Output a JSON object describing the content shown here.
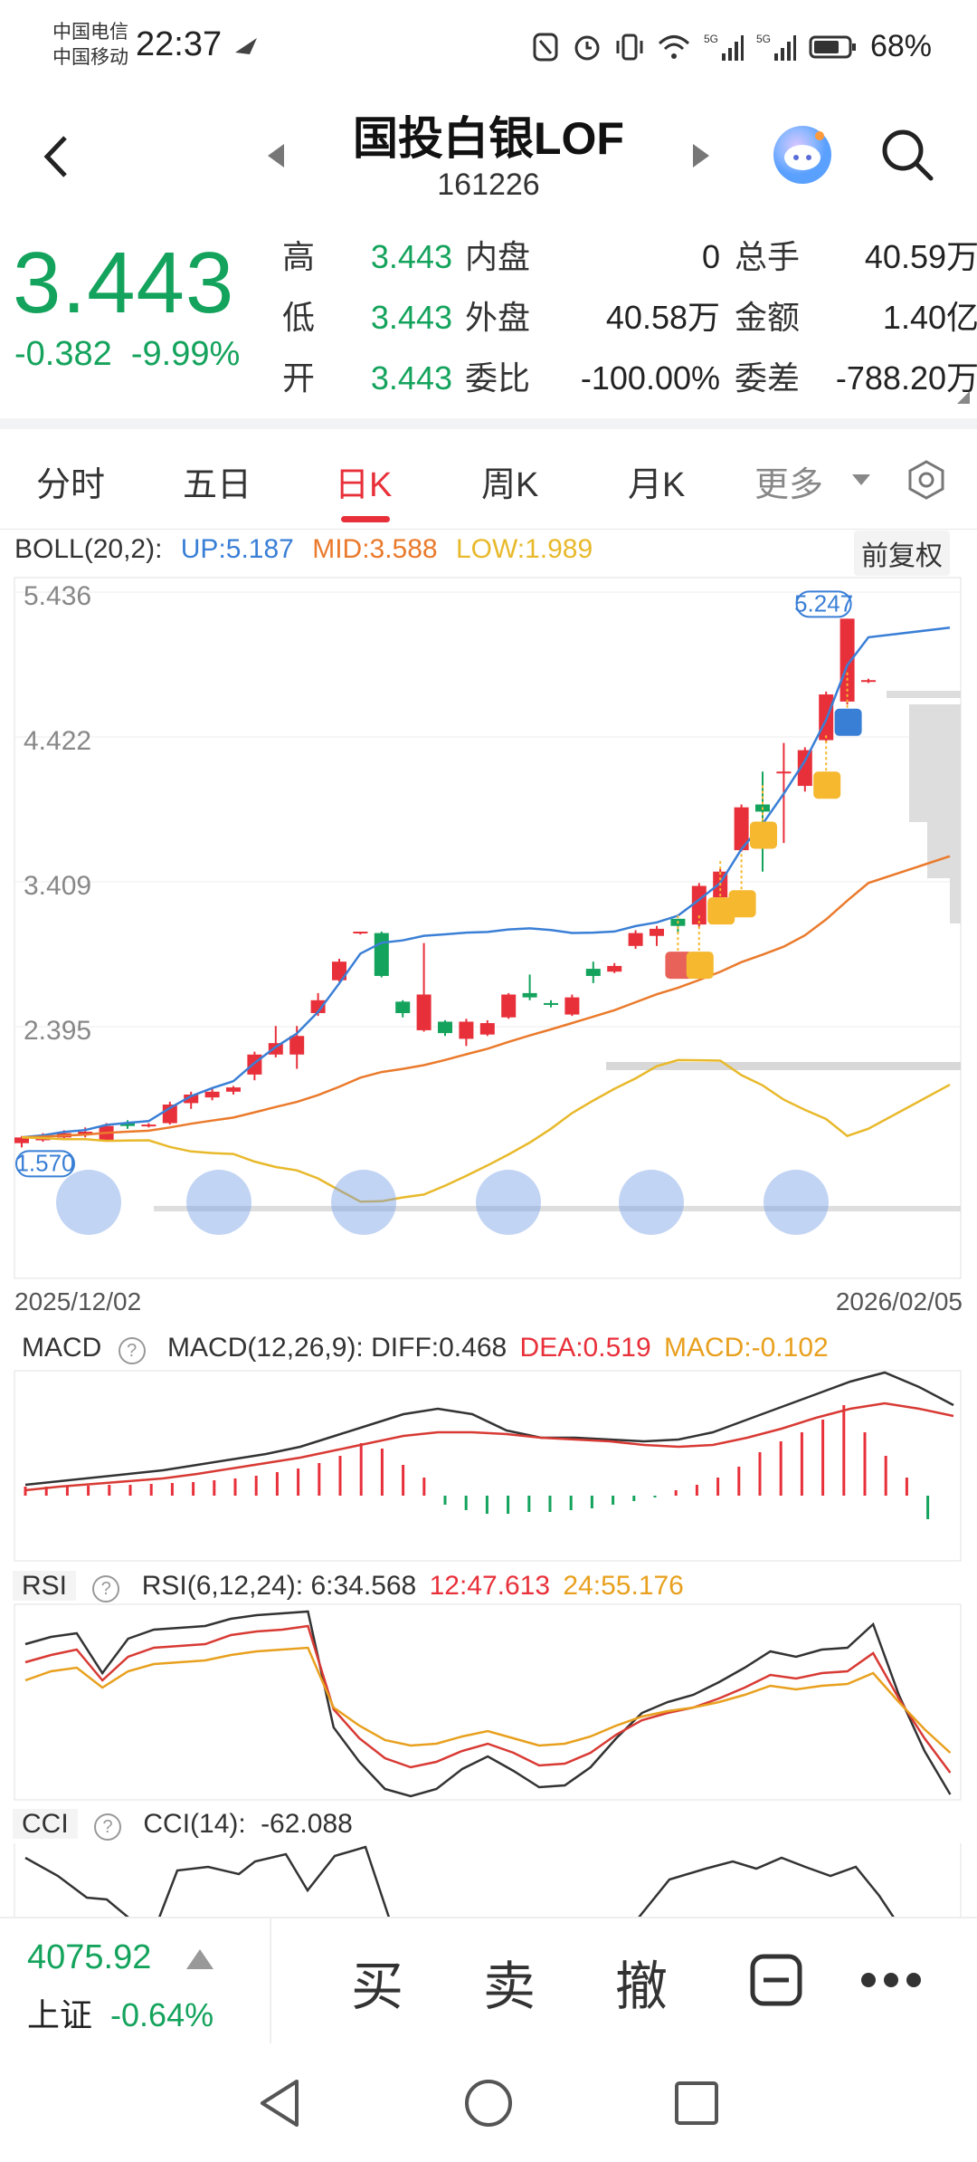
{
  "status_bar": {
    "carrier1": "中国电信",
    "carrier2": "中国移动",
    "time": "22:37",
    "battery": "68%"
  },
  "header": {
    "title": "国投白银LOF",
    "code": "161226"
  },
  "quote": {
    "price": "3.443",
    "change": "-0.382",
    "change_pct": "-9.99%",
    "rows": [
      {
        "l1": "高",
        "v1": "3.443",
        "l2": "内盘",
        "v2": "0",
        "l3": "总手",
        "v3": "40.59万"
      },
      {
        "l1": "低",
        "v1": "3.443",
        "l2": "外盘",
        "v2": "40.58万",
        "l3": "金额",
        "v3": "1.40亿"
      },
      {
        "l1": "开",
        "v1": "3.443",
        "l2": "委比",
        "v2": "-100.00%",
        "l3": "委差",
        "v3": "-788.20万"
      }
    ]
  },
  "tabs": [
    "分时",
    "五日",
    "日K",
    "周K",
    "月K",
    "更多"
  ],
  "active_tab": "日K",
  "boll": {
    "label": "BOLL(20,2):",
    "up": "UP:5.187",
    "mid": "MID:3.588",
    "low": "LOW:1.989",
    "adjust": "前复权"
  },
  "chart_data": {
    "type": "candlestick",
    "y_ticks": [
      "5.436",
      "4.422",
      "3.409",
      "2.395"
    ],
    "high_marker": "5.247",
    "low_marker": "1.570",
    "date_start": "2025/12/02",
    "date_end": "2026/02/05",
    "candles": [
      [
        1.58,
        1.62,
        1.55,
        1.63
      ],
      [
        1.6,
        1.63,
        1.59,
        1.65
      ],
      [
        1.62,
        1.65,
        1.6,
        1.67
      ],
      [
        1.64,
        1.66,
        1.62,
        1.69
      ],
      [
        1.6,
        1.7,
        1.59,
        1.72
      ],
      [
        1.72,
        1.7,
        1.68,
        1.74
      ],
      [
        1.7,
        1.71,
        1.69,
        1.72
      ],
      [
        1.72,
        1.85,
        1.71,
        1.87
      ],
      [
        1.86,
        1.92,
        1.82,
        1.94
      ],
      [
        1.9,
        1.94,
        1.88,
        1.97
      ],
      [
        1.94,
        1.97,
        1.92,
        1.98
      ],
      [
        2.06,
        2.2,
        2.02,
        2.22
      ],
      [
        2.2,
        2.28,
        2.18,
        2.4
      ],
      [
        2.2,
        2.33,
        2.1,
        2.4
      ],
      [
        2.49,
        2.58,
        2.47,
        2.63
      ],
      [
        2.72,
        2.85,
        2.71,
        2.87
      ],
      [
        3.05,
        3.06,
        3.04,
        3.06
      ],
      [
        3.05,
        2.75,
        2.74,
        3.06
      ],
      [
        2.57,
        2.49,
        2.46,
        2.58
      ],
      [
        2.37,
        2.62,
        2.36,
        2.98
      ],
      [
        2.43,
        2.35,
        2.33,
        2.44
      ],
      [
        2.31,
        2.43,
        2.26,
        2.45
      ],
      [
        2.34,
        2.42,
        2.33,
        2.44
      ],
      [
        2.46,
        2.62,
        2.45,
        2.63
      ],
      [
        2.63,
        2.6,
        2.58,
        2.76
      ],
      [
        2.56,
        2.55,
        2.53,
        2.58
      ],
      [
        2.48,
        2.6,
        2.47,
        2.62
      ],
      [
        2.8,
        2.75,
        2.7,
        2.85
      ],
      [
        2.78,
        2.82,
        2.77,
        2.84
      ],
      [
        2.96,
        3.05,
        2.94,
        3.07
      ],
      [
        3.03,
        3.08,
        2.96,
        3.1
      ],
      [
        3.15,
        3.1,
        3.05,
        3.15
      ],
      [
        3.11,
        3.38,
        3.09,
        3.4
      ],
      [
        3.3,
        3.48,
        3.3,
        3.5
      ],
      [
        3.63,
        3.93,
        3.62,
        3.95
      ],
      [
        3.95,
        3.9,
        3.48,
        4.18
      ],
      [
        4.17,
        4.18,
        3.68,
        4.38
      ],
      [
        4.08,
        4.33,
        4.04,
        4.35
      ],
      [
        4.4,
        4.72,
        4.38,
        4.74
      ],
      [
        4.67,
        5.25,
        4.65,
        5.25
      ],
      [
        4.82,
        4.82,
        4.8,
        4.83
      ]
    ],
    "boll_up_note": "UP band rises from ~1.65 to ~5.187",
    "macd": {
      "label": "MACD",
      "params": "MACD(12,26,9):",
      "diff": "DIFF:0.468",
      "dea": "DEA:0.519",
      "macd": "MACD:-0.102"
    },
    "rsi": {
      "label": "RSI",
      "params": "RSI(6,12,24):",
      "r6": "6:34.568",
      "r12": "12:47.613",
      "r24": "24:55.176"
    },
    "cci": {
      "label": "CCI",
      "params": "CCI(14):",
      "value": "-62.088"
    }
  },
  "index": {
    "value": "4075.92",
    "name": "上证",
    "change_pct": "-0.64%"
  },
  "actions": {
    "buy": "买",
    "sell": "卖",
    "cancel": "撤"
  },
  "colors": {
    "up": "#e8303a",
    "down": "#14a35c",
    "boll_up": "#3a7fd6",
    "boll_mid": "#ea7a2c",
    "boll_low": "#e8b92b"
  }
}
